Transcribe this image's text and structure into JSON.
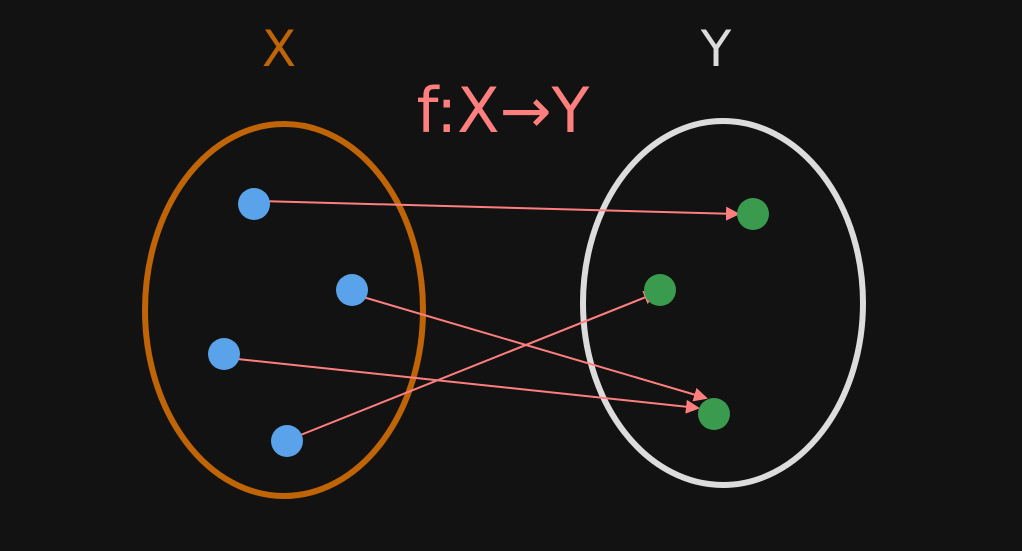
{
  "colors": {
    "background": "#121212",
    "domain_set": "#c06408",
    "codomain_set": "#dcdcdc",
    "domain_point": "#5aa3ea",
    "codomain_point": "#3a9a4e",
    "arrow": "#ff7f7f"
  },
  "sets": {
    "domain": {
      "label": "X"
    },
    "codomain": {
      "label": "Y"
    }
  },
  "function_label": "f:X→Y",
  "domain_points": [
    {
      "id": "x1",
      "maps_to": "y1"
    },
    {
      "id": "x2",
      "maps_to": "y3"
    },
    {
      "id": "x3",
      "maps_to": "y3"
    },
    {
      "id": "x4",
      "maps_to": "y2"
    }
  ],
  "codomain_points": [
    {
      "id": "y1"
    },
    {
      "id": "y2"
    },
    {
      "id": "y3"
    }
  ]
}
